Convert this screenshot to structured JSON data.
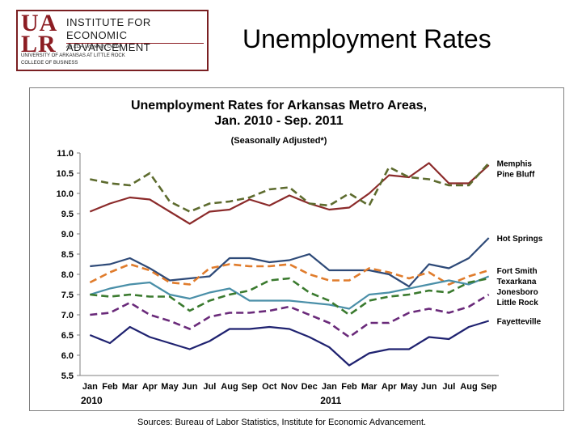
{
  "logo": {
    "letters": [
      "UA",
      "LR"
    ],
    "line1": "INSTITUTE FOR",
    "line2": "ECONOMIC ADVANCEMENT",
    "tagline": "An EDA University Center",
    "university": "UNIVERSITY OF ARKANSAS AT LITTLE ROCK",
    "college": "COLLEGE OF BUSINESS"
  },
  "slide": {
    "title": "Unemployment Rates",
    "sources": "Sources: Bureau of Labor Statistics, Institute for Economic Advancement."
  },
  "chart_data": {
    "type": "line",
    "title_line1": "Unemployment Rates for Arkansas Metro Areas,",
    "title_line2": "Jan. 2010 - Sep. 2011",
    "subtitle": "(Seasonally Adjusted*)",
    "categories": [
      "Jan",
      "Feb",
      "Mar",
      "Apr",
      "May",
      "Jun",
      "Jul",
      "Aug",
      "Sep",
      "Oct",
      "Nov",
      "Dec",
      "Jan",
      "Feb",
      "Mar",
      "Apr",
      "May",
      "Jun",
      "Jul",
      "Aug",
      "Sep"
    ],
    "year_labels": [
      {
        "label": "2010",
        "at": 0
      },
      {
        "label": "2011",
        "at": 12
      }
    ],
    "ylim": [
      5.5,
      11.0
    ],
    "yticks": [
      "5.5",
      "6.0",
      "6.5",
      "7.0",
      "7.5",
      "8.0",
      "8.5",
      "9.0",
      "9.5",
      "10.0",
      "10.5",
      "11.0"
    ],
    "grid": false,
    "series": [
      {
        "name": "Pine Bluff",
        "color": "#8b2a2a",
        "dash": "solid",
        "values": [
          9.55,
          9.75,
          9.9,
          9.85,
          9.55,
          9.25,
          9.55,
          9.6,
          9.85,
          9.7,
          9.95,
          9.75,
          9.6,
          9.65,
          10.0,
          10.45,
          10.4,
          10.75,
          10.25,
          10.25,
          10.7
        ]
      },
      {
        "name": "Memphis",
        "color": "#5d6b2e",
        "dash": "dashed",
        "values": [
          10.35,
          10.25,
          10.2,
          10.5,
          9.8,
          9.55,
          9.75,
          9.8,
          9.9,
          10.1,
          10.15,
          9.75,
          9.7,
          10.0,
          9.7,
          10.65,
          10.4,
          10.35,
          10.2,
          10.2,
          10.75
        ]
      },
      {
        "name": "Hot Springs",
        "color": "#2e4a78",
        "dash": "solid",
        "values": [
          8.2,
          8.25,
          8.4,
          8.15,
          7.85,
          7.9,
          7.95,
          8.4,
          8.4,
          8.3,
          8.35,
          8.5,
          8.1,
          8.1,
          8.1,
          8.0,
          7.7,
          8.25,
          8.15,
          8.4,
          8.9
        ]
      },
      {
        "name": "Fort Smith",
        "color": "#e07c2c",
        "dash": "dashed",
        "values": [
          7.8,
          8.05,
          8.25,
          8.1,
          7.8,
          7.75,
          8.15,
          8.25,
          8.2,
          8.2,
          8.25,
          8.0,
          7.85,
          7.85,
          8.15,
          8.05,
          7.9,
          8.05,
          7.75,
          7.95,
          8.1
        ]
      },
      {
        "name": "Texarkana",
        "color": "#4a8fa8",
        "dash": "solid",
        "values": [
          7.5,
          7.65,
          7.75,
          7.8,
          7.5,
          7.4,
          7.55,
          7.65,
          7.35,
          7.35,
          7.35,
          7.3,
          7.25,
          7.15,
          7.5,
          7.55,
          7.65,
          7.75,
          7.85,
          7.75,
          7.95
        ]
      },
      {
        "name": "Jonesboro",
        "color": "#3a7a2e",
        "dash": "dashed",
        "values": [
          7.5,
          7.45,
          7.5,
          7.45,
          7.45,
          7.1,
          7.35,
          7.5,
          7.6,
          7.85,
          7.9,
          7.55,
          7.35,
          7.0,
          7.35,
          7.45,
          7.5,
          7.6,
          7.55,
          7.8,
          7.9
        ]
      },
      {
        "name": "Little Rock",
        "color": "#6a2a7a",
        "dash": "dashed",
        "values": [
          7.0,
          7.05,
          7.3,
          7.0,
          6.85,
          6.65,
          6.95,
          7.05,
          7.05,
          7.1,
          7.2,
          7.0,
          6.8,
          6.45,
          6.8,
          6.8,
          7.05,
          7.15,
          7.05,
          7.2,
          7.5
        ]
      },
      {
        "name": "Fayetteville",
        "color": "#1f2270",
        "dash": "solid",
        "values": [
          6.5,
          6.3,
          6.7,
          6.45,
          6.3,
          6.15,
          6.35,
          6.65,
          6.65,
          6.7,
          6.65,
          6.45,
          6.2,
          5.75,
          6.05,
          6.15,
          6.15,
          6.45,
          6.4,
          6.7,
          6.85
        ]
      }
    ]
  }
}
